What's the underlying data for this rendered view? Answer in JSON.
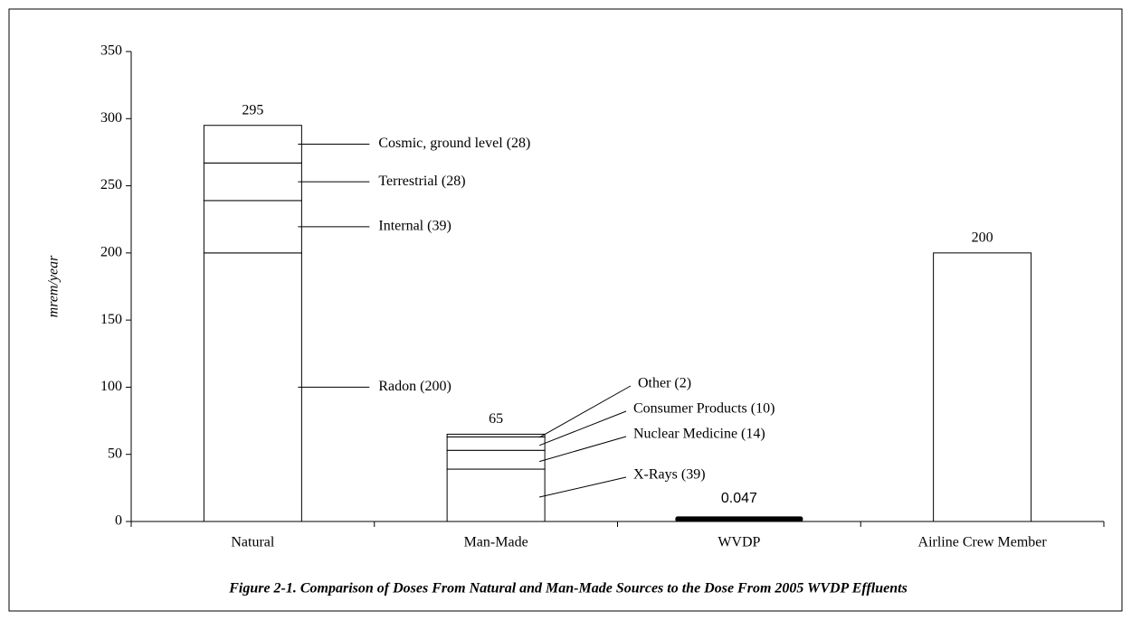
{
  "chart_data": {
    "type": "stacked_bar",
    "caption": "Figure 2-1. Comparison of Doses From Natural and Man-Made Sources to the Dose From 2005 WVDP Effluents",
    "y_label": "mrem/year",
    "categories": [
      "Natural",
      "Man-Made",
      "WVDP",
      "Airline Crew Member"
    ],
    "values": [
      295,
      65,
      0.047,
      200
    ],
    "stacks": [
      [
        {
          "name": "Radon (200)",
          "value": 200
        },
        {
          "name": "Internal (39)",
          "value": 39
        },
        {
          "name": "Terrestrial (28)",
          "value": 28
        },
        {
          "name": "Cosmic, ground level (28)",
          "value": 28
        }
      ],
      [
        {
          "name": "X-Rays (39)",
          "value": 39
        },
        {
          "name": "Nuclear Medicine (14)",
          "value": 14
        },
        {
          "name": "Consumer Products (10)",
          "value": 10
        },
        {
          "name": "Other (2)",
          "value": 2
        }
      ],
      [],
      []
    ],
    "highlight_color": "#000000",
    "color": "#ffffff",
    "ylim": [
      0,
      350
    ],
    "yticks": [
      0,
      50,
      100,
      150,
      200,
      250,
      300,
      350
    ]
  }
}
